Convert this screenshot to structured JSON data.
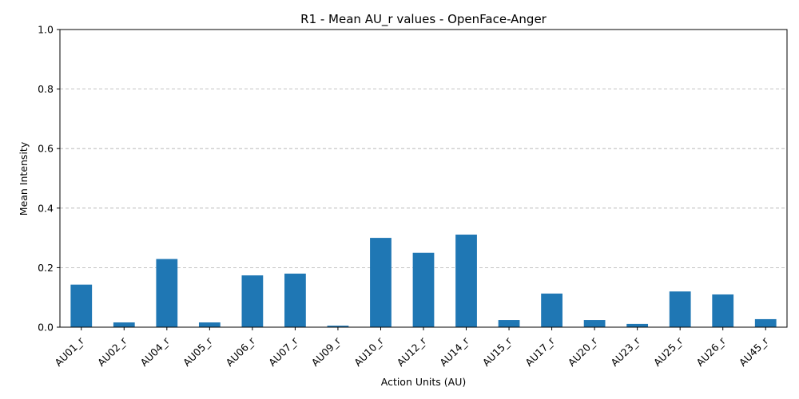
{
  "chart_data": {
    "type": "bar",
    "title": "R1 - Mean AU_r values - OpenFace-Anger",
    "xlabel": "Action Units (AU)",
    "ylabel": "Mean Intensity",
    "ylim": [
      0,
      1.0
    ],
    "yticks": [
      0.0,
      0.2,
      0.4,
      0.6,
      0.8,
      1.0
    ],
    "ytick_labels": [
      "0.0",
      "0.2",
      "0.4",
      "0.6",
      "0.8",
      "1.0"
    ],
    "grid": "y-dashed",
    "bar_color": "#1f77b4",
    "categories": [
      "AU01_r",
      "AU02_r",
      "AU04_r",
      "AU05_r",
      "AU06_r",
      "AU07_r",
      "AU09_r",
      "AU10_r",
      "AU12_r",
      "AU14_r",
      "AU15_r",
      "AU17_r",
      "AU20_r",
      "AU23_r",
      "AU25_r",
      "AU26_r",
      "AU45_r"
    ],
    "values": [
      0.143,
      0.016,
      0.229,
      0.016,
      0.174,
      0.18,
      0.005,
      0.3,
      0.25,
      0.311,
      0.024,
      0.113,
      0.024,
      0.011,
      0.12,
      0.11,
      0.027
    ]
  }
}
